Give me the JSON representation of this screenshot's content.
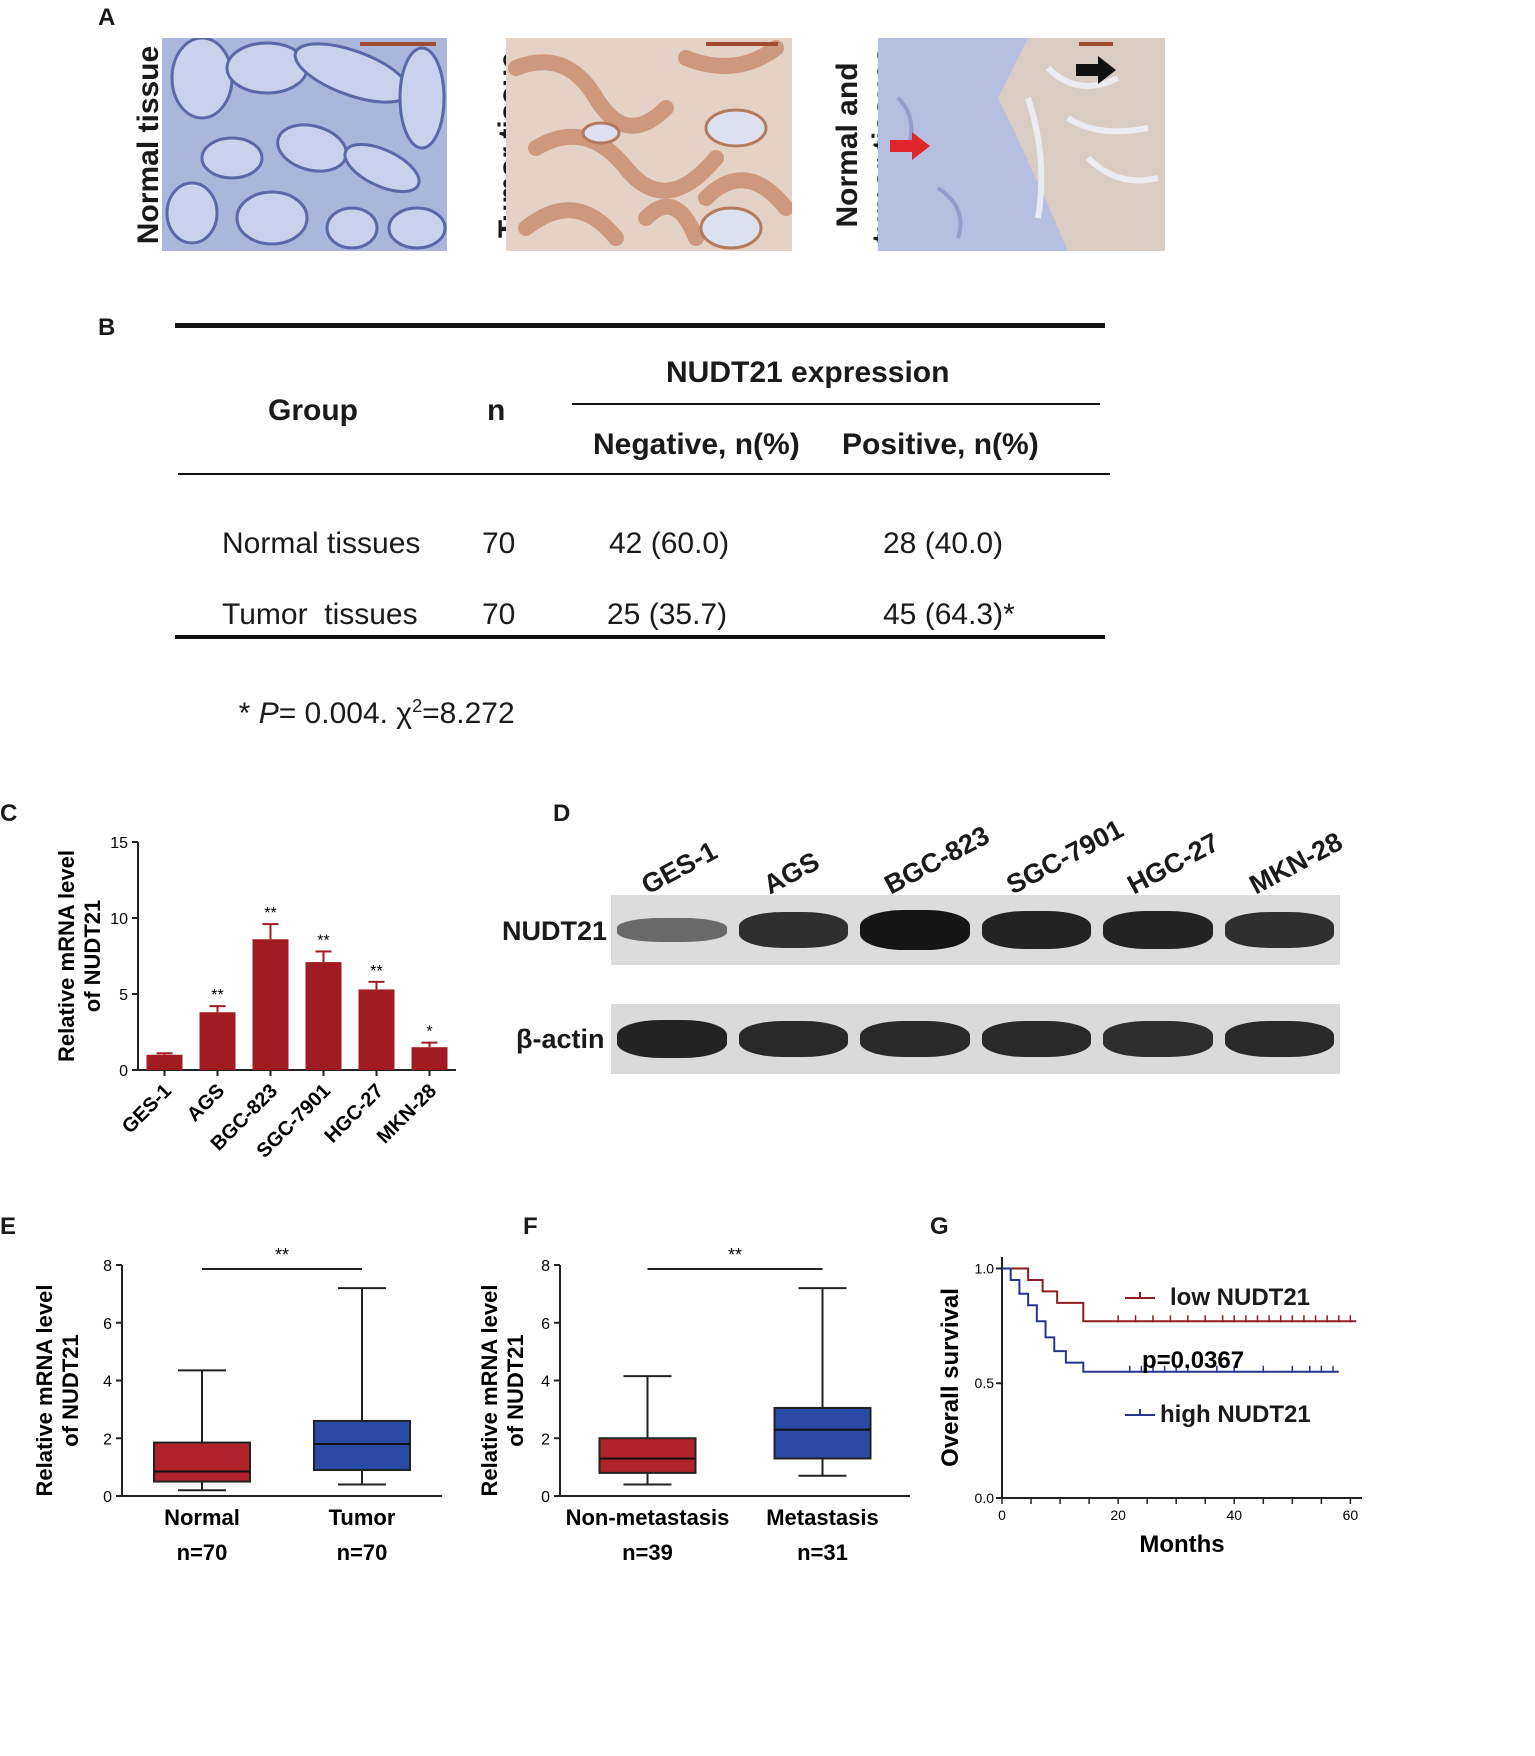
{
  "panel_labels": {
    "a": "A",
    "b": "B",
    "c": "C",
    "d": "D",
    "e": "E",
    "f": "F",
    "g": "G"
  },
  "panel_a": {
    "captions": [
      "Normal tissue",
      "Tumor tissue",
      "Normal and",
      "tumor  tissues"
    ],
    "colors": {
      "normal_stain": "#bcc6e3",
      "tumor_stain": "#d9b39c",
      "red_arrow": "#e0262b",
      "black_arrow": "#111111"
    }
  },
  "panel_b": {
    "headers": {
      "group": "Group",
      "n": "n",
      "expression": "NUDT21 expression",
      "negative": "Negative, n(%)",
      "positive": "Positive, n(%)"
    },
    "rows": [
      {
        "group": "Normal tissues",
        "n": "70",
        "negative": "42 (60.0)",
        "positive": "28 (40.0)"
      },
      {
        "group": "Tumor  tissues",
        "n": "70",
        "negative": "25 (35.7)",
        "positive": "45 (64.3)*"
      }
    ],
    "footnote": {
      "star": "* ",
      "p": "P",
      "p_rest": "= 0.004. χ",
      "sup": "2",
      "chi": "=8.272"
    }
  },
  "chart_data": [
    {
      "panel": "C",
      "type": "bar",
      "categories": [
        "GES-1",
        "AGS",
        "BGC-823",
        "SGC-7901",
        "HGC-27",
        "MKN-28"
      ],
      "values": [
        1.0,
        3.8,
        8.6,
        7.1,
        5.3,
        1.5
      ],
      "errors": [
        0.1,
        0.4,
        1.0,
        0.7,
        0.5,
        0.3
      ],
      "significance": [
        "",
        "**",
        "**",
        "**",
        "**",
        "*"
      ],
      "ylabel": [
        "Relative mRNA level",
        "of NUDT21"
      ],
      "ylim": [
        0,
        15
      ],
      "yticks": [
        0,
        5,
        10,
        15
      ],
      "color": "#a01c22"
    },
    {
      "panel": "E",
      "type": "box",
      "categories": [
        "Normal",
        "Tumor"
      ],
      "counts": [
        "n=70",
        "n=70"
      ],
      "boxes": [
        {
          "min": 0.2,
          "q1": 0.5,
          "median": 0.85,
          "q3": 1.85,
          "max": 4.35
        },
        {
          "min": 0.4,
          "q1": 0.9,
          "median": 1.8,
          "q3": 2.6,
          "max": 7.2
        }
      ],
      "colors": [
        "#b0232a",
        "#2b4aa6"
      ],
      "significance": "**",
      "ylabel": [
        "Relative mRNA level",
        "of NUDT21"
      ],
      "ylim": [
        0,
        8
      ],
      "yticks": [
        0,
        2,
        4,
        6,
        8
      ]
    },
    {
      "panel": "F",
      "type": "box",
      "categories": [
        "Non-metastasis",
        "Metastasis"
      ],
      "counts": [
        "n=39",
        "n=31"
      ],
      "boxes": [
        {
          "min": 0.4,
          "q1": 0.8,
          "median": 1.3,
          "q3": 2.0,
          "max": 4.15
        },
        {
          "min": 0.7,
          "q1": 1.3,
          "median": 2.3,
          "q3": 3.05,
          "max": 7.2
        }
      ],
      "colors": [
        "#b0232a",
        "#2b4aa6"
      ],
      "significance": "**",
      "ylabel": [
        "Relative mRNA level",
        "of NUDT21"
      ],
      "ylim": [
        0,
        8
      ],
      "yticks": [
        0,
        2,
        4,
        6,
        8
      ]
    },
    {
      "panel": "G",
      "type": "line",
      "xlabel": "Months",
      "ylabel": "Overall survival",
      "xlim": [
        0,
        62
      ],
      "ylim": [
        0,
        1.05
      ],
      "xticks": [
        0,
        20,
        40,
        60
      ],
      "yticks": [
        "0.0",
        "0.5",
        "1.0"
      ],
      "annotation": "p=0.0367",
      "series": [
        {
          "name": "low NUDT21",
          "color": "#8e1d24",
          "x": [
            0,
            4.5,
            4.5,
            7,
            7,
            9.5,
            9.5,
            14,
            14,
            61
          ],
          "y": [
            1.0,
            1.0,
            0.95,
            0.95,
            0.9,
            0.9,
            0.85,
            0.85,
            0.77,
            0.77
          ],
          "censor_x": [
            20,
            23,
            26,
            29,
            32,
            35,
            38,
            40,
            42,
            44,
            46,
            48,
            50,
            52,
            54,
            56,
            58,
            60
          ]
        },
        {
          "name": "high NUDT21",
          "color": "#27358f",
          "x": [
            0,
            1.5,
            1.5,
            3,
            3,
            4.5,
            4.5,
            6,
            6,
            7.5,
            7.5,
            9,
            9,
            11,
            11,
            14,
            14,
            58
          ],
          "y": [
            1.0,
            1.0,
            0.95,
            0.95,
            0.89,
            0.89,
            0.84,
            0.84,
            0.77,
            0.77,
            0.7,
            0.7,
            0.64,
            0.64,
            0.59,
            0.59,
            0.55,
            0.55
          ],
          "censor_x": [
            22,
            24,
            26,
            28,
            30,
            32,
            37,
            40,
            45,
            50,
            53,
            55,
            57
          ]
        }
      ]
    }
  ],
  "panel_d": {
    "lanes": [
      "GES-1",
      "AGS",
      "BGC-823",
      "SGC-7901",
      "HGC-27",
      "MKN-28"
    ],
    "rows": [
      "NUDT21",
      "β-actin"
    ],
    "nudt21_intensity": [
      0.35,
      0.8,
      1.0,
      0.9,
      0.9,
      0.8
    ],
    "actin_intensity": [
      0.9,
      0.85,
      0.85,
      0.85,
      0.8,
      0.85
    ]
  }
}
